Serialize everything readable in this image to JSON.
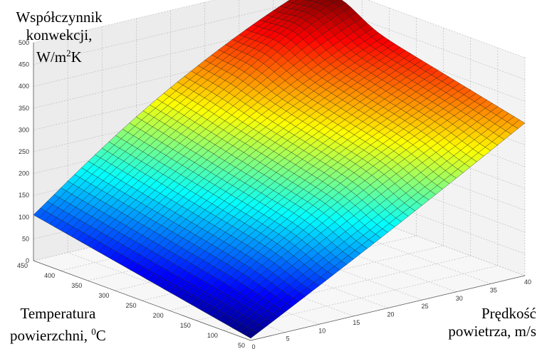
{
  "chart_data": {
    "type": "surface",
    "zlabel": {
      "line1": "Współczynnik",
      "line2": "konwekcji,",
      "line3_pre": "W/m",
      "line3_sup": "2",
      "line3_post": "K"
    },
    "ylabel": {
      "line1": "Temperatura",
      "line2_pre": "powierzchni, ",
      "line2_sup": "0",
      "line2_post": "C"
    },
    "xlabel": {
      "line1": "Prędkość",
      "line2": "powietrza, m/s"
    },
    "x_ticks": [
      "0",
      "5",
      "10",
      "15",
      "20",
      "25",
      "30",
      "35",
      "40"
    ],
    "y_ticks": [
      "50",
      "100",
      "150",
      "200",
      "250",
      "300",
      "350",
      "400",
      "450"
    ],
    "z_ticks": [
      "0",
      "50",
      "100",
      "150",
      "200",
      "250",
      "300",
      "350",
      "400",
      "450",
      "500"
    ],
    "xlim": [
      0,
      40
    ],
    "ylim": [
      50,
      450
    ],
    "zlim": [
      0,
      500
    ],
    "grid": true,
    "colormap": "jet",
    "surface_corners": [
      {
        "x": 0,
        "y": 50,
        "z": 5
      },
      {
        "x": 0,
        "y": 450,
        "z": 105
      },
      {
        "x": 40,
        "y": 50,
        "z": 350
      },
      {
        "x": 40,
        "y": 450,
        "z": 470
      }
    ],
    "mesh": {
      "nx": 40,
      "ny": 40
    }
  }
}
